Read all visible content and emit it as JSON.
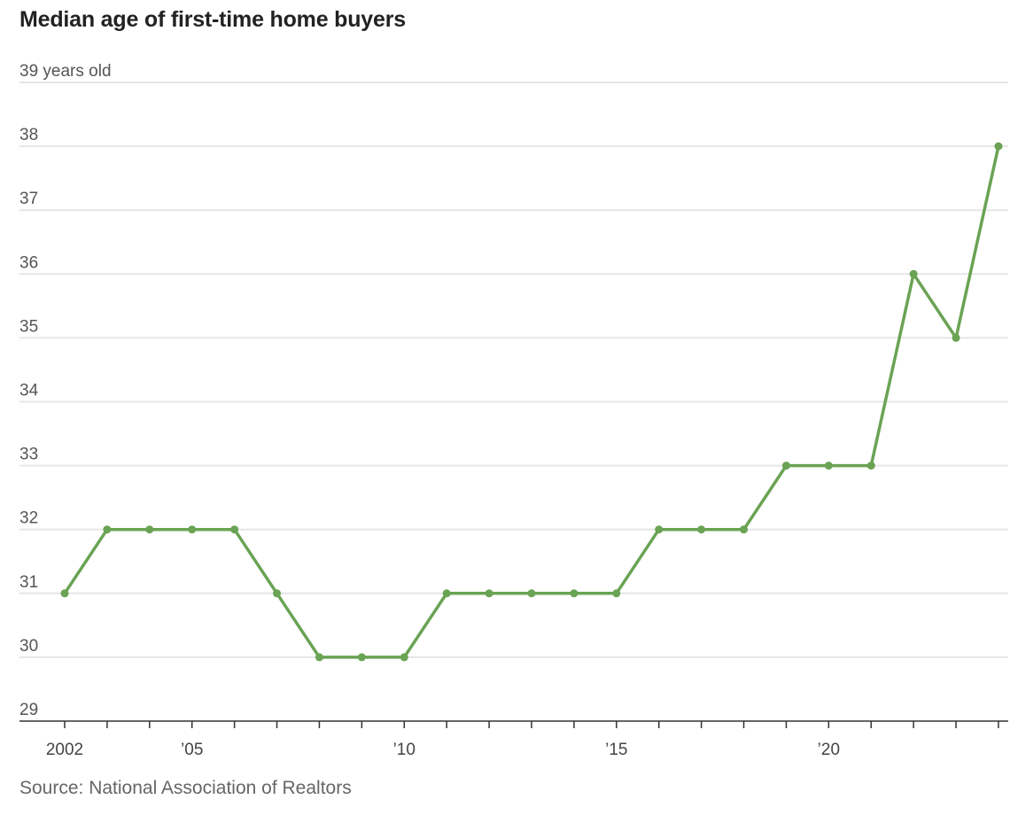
{
  "chart_data": {
    "type": "line",
    "title": "Median age of first-time home buyers",
    "source": "Source: National Association of Realtors",
    "xlabel": "",
    "ylabel": "",
    "x": [
      2002,
      2003,
      2004,
      2005,
      2006,
      2007,
      2008,
      2009,
      2010,
      2011,
      2012,
      2013,
      2014,
      2015,
      2016,
      2017,
      2018,
      2019,
      2020,
      2021,
      2022,
      2023,
      2024
    ],
    "series": [
      {
        "values": [
          31,
          32,
          32,
          32,
          32,
          31,
          30,
          30,
          30,
          31,
          31,
          31,
          31,
          31,
          32,
          32,
          32,
          33,
          33,
          33,
          36,
          35,
          38
        ],
        "color": "#6aa354"
      }
    ],
    "xlim": [
      2002,
      2024
    ],
    "ylim": [
      29,
      39
    ],
    "y_ticks": [
      {
        "value": 39,
        "label": "39 years old"
      },
      {
        "value": 38,
        "label": "38"
      },
      {
        "value": 37,
        "label": "37"
      },
      {
        "value": 36,
        "label": "36"
      },
      {
        "value": 35,
        "label": "35"
      },
      {
        "value": 34,
        "label": "34"
      },
      {
        "value": 33,
        "label": "33"
      },
      {
        "value": 32,
        "label": "32"
      },
      {
        "value": 31,
        "label": "31"
      },
      {
        "value": 30,
        "label": "30"
      },
      {
        "value": 29,
        "label": "29"
      }
    ],
    "x_ticks": [
      {
        "value": 2002,
        "label": "2002"
      },
      {
        "value": 2005,
        "label": "’05"
      },
      {
        "value": 2010,
        "label": "’10"
      },
      {
        "value": 2015,
        "label": "’15"
      },
      {
        "value": 2020,
        "label": "’20"
      }
    ],
    "grid": true,
    "colors": {
      "line": "#6aa354",
      "grid": "#e6e6e6",
      "axis": "#333333"
    }
  }
}
